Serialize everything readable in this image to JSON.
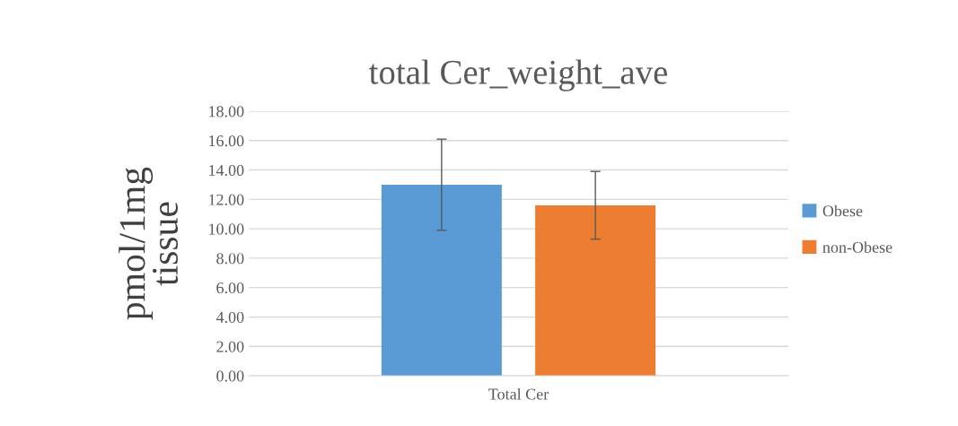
{
  "chart_data": {
    "type": "bar",
    "title": "total Cer_weight_ave",
    "ylabel": "pmol/1mg\ntissue",
    "categories": [
      "Total Cer"
    ],
    "series": [
      {
        "name": "Obese",
        "color": "#5b9bd5",
        "values": [
          13.0
        ],
        "errors": [
          3.1
        ]
      },
      {
        "name": "non-Obese",
        "color": "#ed7d31",
        "values": [
          11.6
        ],
        "errors": [
          2.3
        ]
      }
    ],
    "ylim": [
      0,
      18
    ],
    "yticks": [
      {
        "value": 0,
        "label": "0.00"
      },
      {
        "value": 2,
        "label": "2.00"
      },
      {
        "value": 4,
        "label": "4.00"
      },
      {
        "value": 6,
        "label": "6.00"
      },
      {
        "value": 8,
        "label": "8.00"
      },
      {
        "value": 10,
        "label": "10.00"
      },
      {
        "value": 12,
        "label": "12.00"
      },
      {
        "value": 14,
        "label": "14.00"
      },
      {
        "value": 16,
        "label": "16.00"
      },
      {
        "value": 18,
        "label": "18.00"
      }
    ],
    "grid": "y",
    "legend": "right"
  }
}
